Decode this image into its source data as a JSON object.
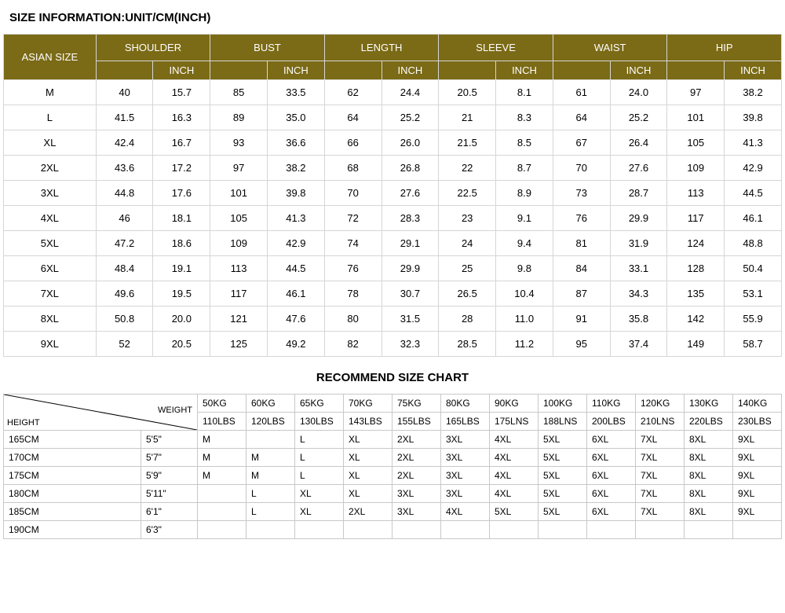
{
  "title": "SIZE INFORMATION:UNIT/CM(INCH)",
  "header_bg": "#7b6a16",
  "header_fg": "#ffffff",
  "border_color": "#d6d6d6",
  "size_header": {
    "asian_size": "ASIAN SIZE",
    "measures": [
      "SHOULDER",
      "BUST",
      "LENGTH",
      "SLEEVE",
      "WAIST",
      "HIP"
    ],
    "inch_label": "INCH"
  },
  "size_rows": [
    {
      "size": "M",
      "vals": [
        "40",
        "15.7",
        "85",
        "33.5",
        "62",
        "24.4",
        "20.5",
        "8.1",
        "61",
        "24.0",
        "97",
        "38.2"
      ]
    },
    {
      "size": "L",
      "vals": [
        "41.5",
        "16.3",
        "89",
        "35.0",
        "64",
        "25.2",
        "21",
        "8.3",
        "64",
        "25.2",
        "101",
        "39.8"
      ]
    },
    {
      "size": "XL",
      "vals": [
        "42.4",
        "16.7",
        "93",
        "36.6",
        "66",
        "26.0",
        "21.5",
        "8.5",
        "67",
        "26.4",
        "105",
        "41.3"
      ]
    },
    {
      "size": "2XL",
      "vals": [
        "43.6",
        "17.2",
        "97",
        "38.2",
        "68",
        "26.8",
        "22",
        "8.7",
        "70",
        "27.6",
        "109",
        "42.9"
      ]
    },
    {
      "size": "3XL",
      "vals": [
        "44.8",
        "17.6",
        "101",
        "39.8",
        "70",
        "27.6",
        "22.5",
        "8.9",
        "73",
        "28.7",
        "113",
        "44.5"
      ]
    },
    {
      "size": "4XL",
      "vals": [
        "46",
        "18.1",
        "105",
        "41.3",
        "72",
        "28.3",
        "23",
        "9.1",
        "76",
        "29.9",
        "117",
        "46.1"
      ]
    },
    {
      "size": "5XL",
      "vals": [
        "47.2",
        "18.6",
        "109",
        "42.9",
        "74",
        "29.1",
        "24",
        "9.4",
        "81",
        "31.9",
        "124",
        "48.8"
      ]
    },
    {
      "size": "6XL",
      "vals": [
        "48.4",
        "19.1",
        "113",
        "44.5",
        "76",
        "29.9",
        "25",
        "9.8",
        "84",
        "33.1",
        "128",
        "50.4"
      ]
    },
    {
      "size": "7XL",
      "vals": [
        "49.6",
        "19.5",
        "117",
        "46.1",
        "78",
        "30.7",
        "26.5",
        "10.4",
        "87",
        "34.3",
        "135",
        "53.1"
      ]
    },
    {
      "size": "8XL",
      "vals": [
        "50.8",
        "20.0",
        "121",
        "47.6",
        "80",
        "31.5",
        "28",
        "11.0",
        "91",
        "35.8",
        "142",
        "55.9"
      ]
    },
    {
      "size": "9XL",
      "vals": [
        "52",
        "20.5",
        "125",
        "49.2",
        "82",
        "32.3",
        "28.5",
        "11.2",
        "95",
        "37.4",
        "149",
        "58.7"
      ]
    }
  ],
  "recommend_title": "RECOMMEND SIZE CHART",
  "rec_axis": {
    "height": "HEIGHT",
    "weight": "WEIGHT"
  },
  "rec_weights_kg": [
    "50KG",
    "60KG",
    "65KG",
    "70KG",
    "75KG",
    "80KG",
    "90KG",
    "100KG",
    "110KG",
    "120KG",
    "130KG",
    "140KG"
  ],
  "rec_weights_lbs": [
    "110LBS",
    "120LBS",
    "130LBS",
    "143LBS",
    "155LBS",
    "165LBS",
    "175LNS",
    "188LNS",
    "200LBS",
    "210LNS",
    "220LBS",
    "230LBS"
  ],
  "rec_rows": [
    {
      "cm": "165CM",
      "ft": "5'5\"",
      "vals": [
        "M",
        "",
        "L",
        "XL",
        "2XL",
        "3XL",
        "4XL",
        "5XL",
        "6XL",
        "7XL",
        "8XL",
        "9XL"
      ]
    },
    {
      "cm": "170CM",
      "ft": "5'7\"",
      "vals": [
        "M",
        "M",
        "L",
        "XL",
        "2XL",
        "3XL",
        "4XL",
        "5XL",
        "6XL",
        "7XL",
        "8XL",
        "9XL"
      ]
    },
    {
      "cm": "175CM",
      "ft": "5'9\"",
      "vals": [
        "M",
        "M",
        "L",
        "XL",
        "2XL",
        "3XL",
        "4XL",
        "5XL",
        "6XL",
        "7XL",
        "8XL",
        "9XL"
      ]
    },
    {
      "cm": "180CM",
      "ft": "5'11\"",
      "vals": [
        "",
        "L",
        "XL",
        "XL",
        "3XL",
        "3XL",
        "4XL",
        "5XL",
        "6XL",
        "7XL",
        "8XL",
        "9XL"
      ]
    },
    {
      "cm": "185CM",
      "ft": "6'1\"",
      "vals": [
        "",
        "L",
        "XL",
        "2XL",
        "3XL",
        "4XL",
        "5XL",
        "5XL",
        "6XL",
        "7XL",
        "8XL",
        "9XL"
      ]
    },
    {
      "cm": "190CM",
      "ft": "6'3\"",
      "vals": [
        "",
        "",
        "",
        "",
        "",
        "",
        "",
        "",
        "",
        "",
        "",
        ""
      ]
    }
  ]
}
